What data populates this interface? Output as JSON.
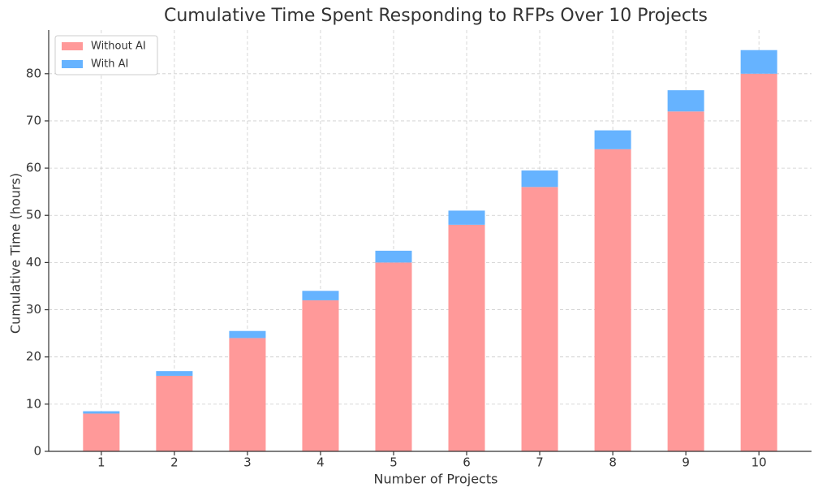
{
  "chart_data": {
    "type": "stacked-bar",
    "title": "Cumulative Time Spent Responding to RFPs Over 10 Projects",
    "x_label": "Number of Projects",
    "y_label": "Cumulative Time (hours)",
    "categories": [
      "1",
      "2",
      "3",
      "4",
      "5",
      "6",
      "7",
      "8",
      "9",
      "10"
    ],
    "series": [
      {
        "name": "Without AI",
        "color": "#ff9999",
        "values": [
          8,
          16,
          24,
          32,
          40,
          48,
          56,
          64,
          72,
          80
        ]
      },
      {
        "name": "With AI",
        "color": "#66b3ff",
        "values": [
          0.5,
          1,
          1.5,
          2,
          2.5,
          3,
          3.5,
          4,
          4.5,
          5
        ]
      }
    ],
    "ylim": [
      0,
      89.25
    ],
    "yticks": [
      0,
      10,
      20,
      30,
      40,
      50,
      60,
      70,
      80
    ],
    "grid": true,
    "legend": "upper-left"
  }
}
